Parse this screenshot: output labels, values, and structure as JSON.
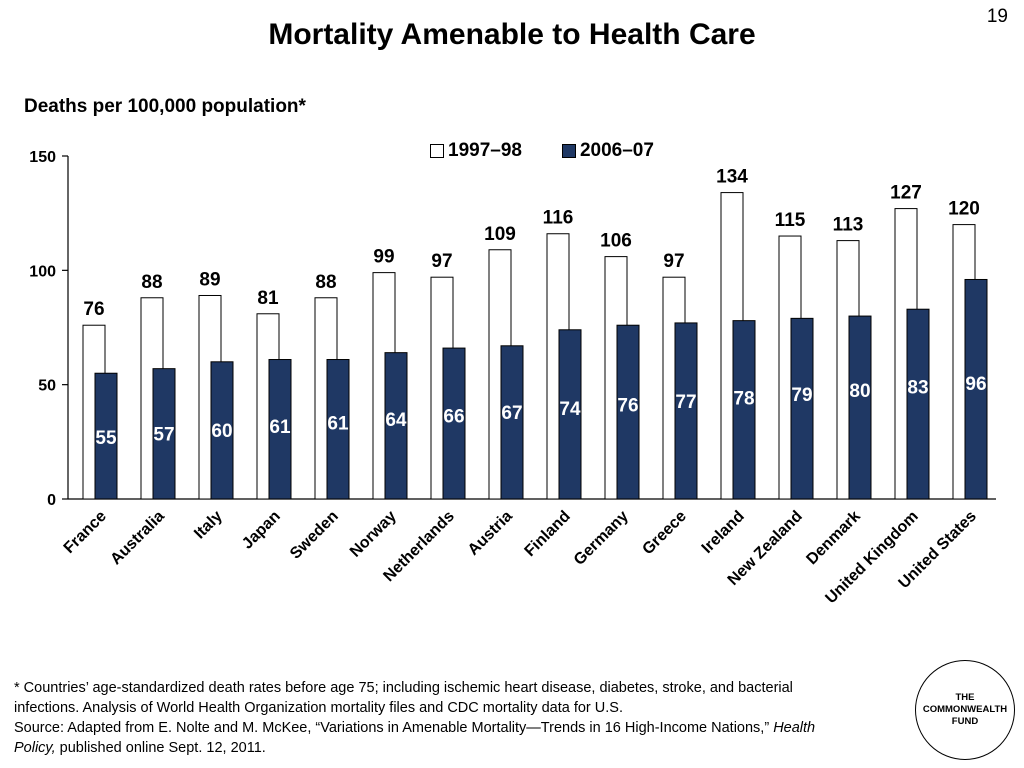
{
  "page_number": "19",
  "title": "Mortality Amenable to Health Care",
  "subtitle": "Deaths per 100,000 population*",
  "legend": [
    {
      "name": "1997–98",
      "color": "#ffffff"
    },
    {
      "name": "2006–07",
      "color": "#1f3864"
    }
  ],
  "colors": {
    "series_1997": "#ffffff",
    "series_2006": "#1f3864",
    "outline": "#000000",
    "inner_label": "#ffffff"
  },
  "chart_data": {
    "type": "bar",
    "title": "Mortality Amenable to Health Care",
    "ylabel": "",
    "xlabel": "",
    "ylim": [
      0,
      150
    ],
    "yticks": [
      0,
      50,
      100,
      150
    ],
    "grid": false,
    "legend_position": "top",
    "categories": [
      "France",
      "Australia",
      "Italy",
      "Japan",
      "Sweden",
      "Norway",
      "Netherlands",
      "Austria",
      "Finland",
      "Germany",
      "Greece",
      "Ireland",
      "New Zealand",
      "Denmark",
      "United Kingdom",
      "United States"
    ],
    "series": [
      {
        "name": "1997–98",
        "values": [
          76,
          88,
          89,
          81,
          88,
          99,
          97,
          109,
          116,
          106,
          97,
          134,
          115,
          113,
          127,
          120
        ]
      },
      {
        "name": "2006–07",
        "values": [
          55,
          57,
          60,
          61,
          61,
          64,
          66,
          67,
          74,
          76,
          77,
          78,
          79,
          80,
          83,
          96
        ]
      }
    ]
  },
  "footnote": {
    "line1": "* Countries’ age-standardized death rates before age 75; including ischemic heart disease, diabetes, stroke, and bacterial infections. Analysis of World Health Organization mortality files and CDC mortality data for U.S.",
    "source_prefix": "Source: Adapted from E. Nolte and M. McKee, “Variations in Amenable Mortality—Trends in 16 High-Income Nations,” ",
    "source_journal": "Health Policy,",
    "source_suffix": " published online Sept. 12, 2011."
  },
  "logo": {
    "line1": "THE",
    "line2": "COMMONWEALTH",
    "line3": "FUND"
  }
}
